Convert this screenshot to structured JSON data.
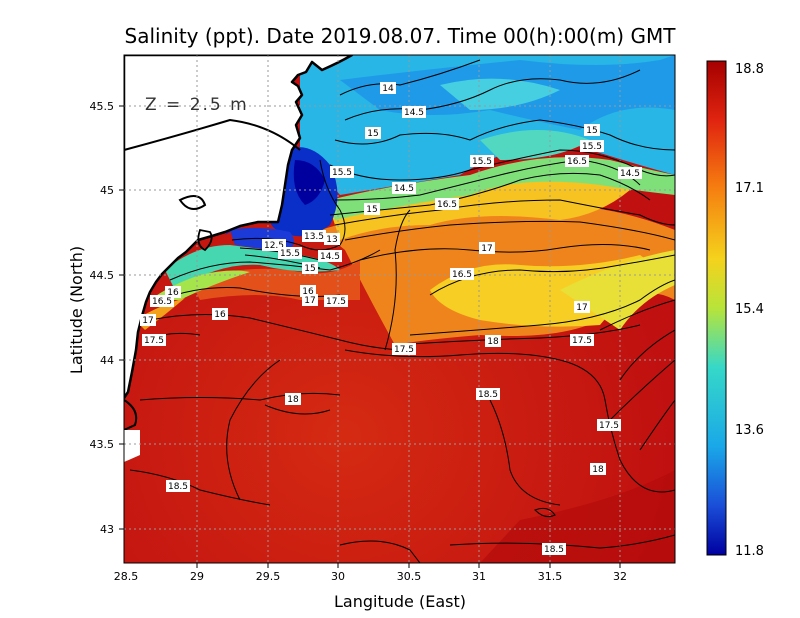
{
  "title": "Salinity (ppt). Date 2019.08.07. Time 00(h):00(m) GMT",
  "depth_label": "Z = 2.5 m",
  "x_axis": {
    "label": "Langitude (East)",
    "ticks": [
      "28.5",
      "29",
      "29.5",
      "30",
      "30.5",
      "31",
      "31.5",
      "32"
    ]
  },
  "y_axis": {
    "label": "Latitude (North)",
    "ticks": [
      "45.5",
      "45",
      "44.5",
      "44",
      "43.5",
      "43"
    ]
  },
  "colorbar": {
    "ticks": [
      "18.8",
      "17.1",
      "15.4",
      "13.6",
      "11.8"
    ],
    "min": 11.8,
    "max": 18.8
  },
  "contour_labels": [
    "14",
    "14.5",
    "15",
    "15.5",
    "15",
    "15.5",
    "16.5",
    "14.5",
    "14.5",
    "15",
    "16.5",
    "15.5",
    "13.5",
    "13",
    "12.5",
    "15.5",
    "14.5",
    "15",
    "17",
    "16.5",
    "16",
    "16",
    "16.5",
    "17",
    "17",
    "17.5",
    "16",
    "17",
    "17.5",
    "17.5",
    "17.5",
    "18",
    "18",
    "18.5",
    "17.5",
    "18",
    "18.5",
    "18.5"
  ],
  "colors": {
    "high": "#c41414",
    "mid": "#f4c61e",
    "low": "#0000a8"
  }
}
